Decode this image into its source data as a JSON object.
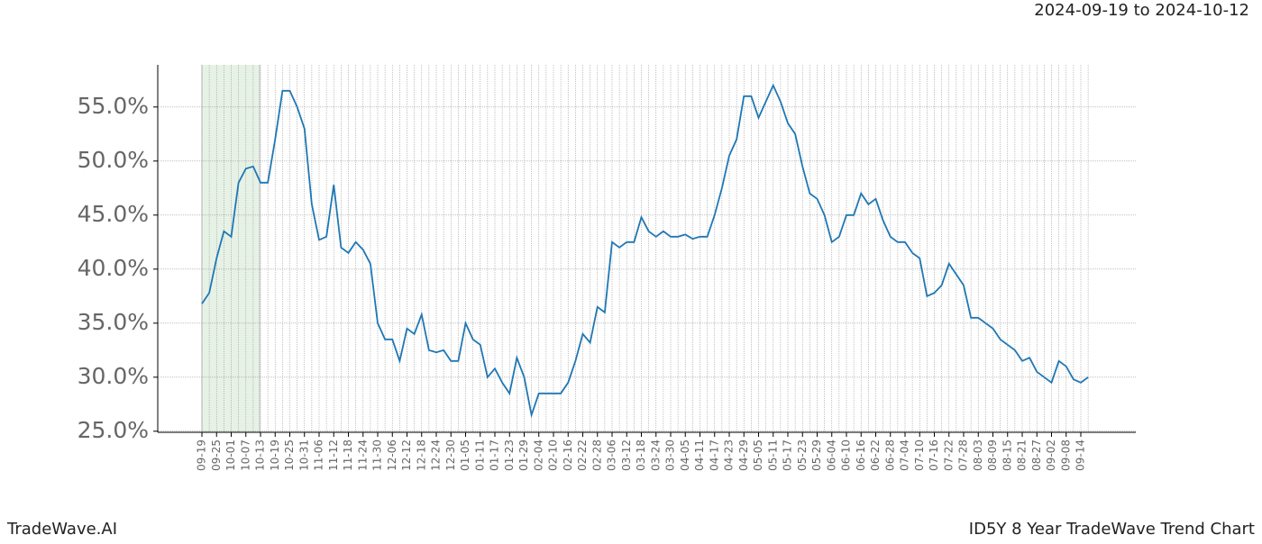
{
  "chart_data": {
    "type": "line",
    "subtitle": "2024-09-19 to 2024-10-12",
    "brand": "TradeWave.AI",
    "title": "ID5Y 8 Year TradeWave Trend Chart",
    "categories": [
      "09-19",
      null,
      "09-25",
      null,
      "10-01",
      null,
      "10-07",
      null,
      "10-13",
      null,
      "10-19",
      null,
      "10-25",
      null,
      "10-31",
      null,
      "11-06",
      null,
      "11-12",
      null,
      "11-18",
      null,
      "11-24",
      null,
      "11-30",
      null,
      "12-06",
      null,
      "12-12",
      null,
      "12-18",
      null,
      "12-24",
      null,
      "12-30",
      null,
      "01-05",
      null,
      "01-11",
      null,
      "01-17",
      null,
      "01-23",
      null,
      "01-29",
      null,
      "02-04",
      null,
      "02-10",
      null,
      "02-16",
      null,
      "02-22",
      null,
      "02-28",
      null,
      "03-06",
      null,
      "03-12",
      null,
      "03-18",
      null,
      "03-24",
      null,
      "03-30",
      null,
      "04-05",
      null,
      "04-11",
      null,
      "04-17",
      null,
      "04-23",
      null,
      "04-29",
      null,
      "05-05",
      null,
      "05-11",
      null,
      "05-17",
      null,
      "05-23",
      null,
      "05-29",
      null,
      "06-04",
      null,
      "06-10",
      null,
      "06-16",
      null,
      "06-22",
      null,
      "06-28",
      null,
      "07-04",
      null,
      "07-10",
      null,
      "07-16",
      null,
      "07-22",
      null,
      "07-28",
      null,
      "08-03",
      null,
      "08-09",
      null,
      "08-15",
      null,
      "08-21",
      null,
      "08-27",
      null,
      "09-02",
      null,
      "09-08",
      null,
      "09-14",
      null
    ],
    "series": [
      {
        "color": "#1f77b4",
        "values": [
          36.8,
          37.8,
          41,
          43.5,
          43,
          48,
          49.3,
          49.5,
          48,
          48,
          52,
          56.5,
          56.5,
          55,
          53,
          46,
          42.7,
          43,
          47.8,
          42,
          41.5,
          42.5,
          41.8,
          40.5,
          35,
          33.5,
          33.5,
          31.5,
          34.5,
          34,
          35.8,
          32.5,
          32.3,
          32.5,
          31.5,
          31.5,
          35,
          33.5,
          33,
          30,
          30.8,
          29.5,
          28.5,
          31.8,
          30,
          26.5,
          28.5,
          28.5,
          28.5,
          28.5,
          29.5,
          31.5,
          34,
          33.2,
          36.5,
          36,
          42.5,
          42,
          42.5,
          42.5,
          44.8,
          43.5,
          43,
          43.5,
          43,
          43,
          43.2,
          42.8,
          43,
          43,
          45,
          47.5,
          50.5,
          52,
          56,
          56,
          54,
          55.5,
          57,
          55.5,
          53.5,
          52.5,
          49.5,
          47,
          46.5,
          45,
          42.5,
          43,
          45,
          45,
          47,
          46,
          46.5,
          44.5,
          43,
          42.5,
          42.5,
          41.5,
          41,
          37.5,
          37.8,
          38.5,
          40.5,
          39.5,
          38.5,
          35.5,
          35.5,
          35,
          34.5,
          33.5,
          33,
          32.5,
          31.5,
          31.8,
          30.5,
          30,
          29.5,
          31.5,
          31,
          29.8,
          29.5,
          30
        ]
      }
    ],
    "ylim": [
      24.9,
      58.9
    ],
    "yticks": [
      {
        "value": 25,
        "label": "25.0%"
      },
      {
        "value": 30,
        "label": "30.0%"
      },
      {
        "value": 35,
        "label": "35.0%"
      },
      {
        "value": 40,
        "label": "40.0%"
      },
      {
        "value": 45,
        "label": "45.0%"
      },
      {
        "value": 50,
        "label": "50.0%"
      },
      {
        "value": 55,
        "label": "55.0%"
      }
    ],
    "grid": true
  }
}
